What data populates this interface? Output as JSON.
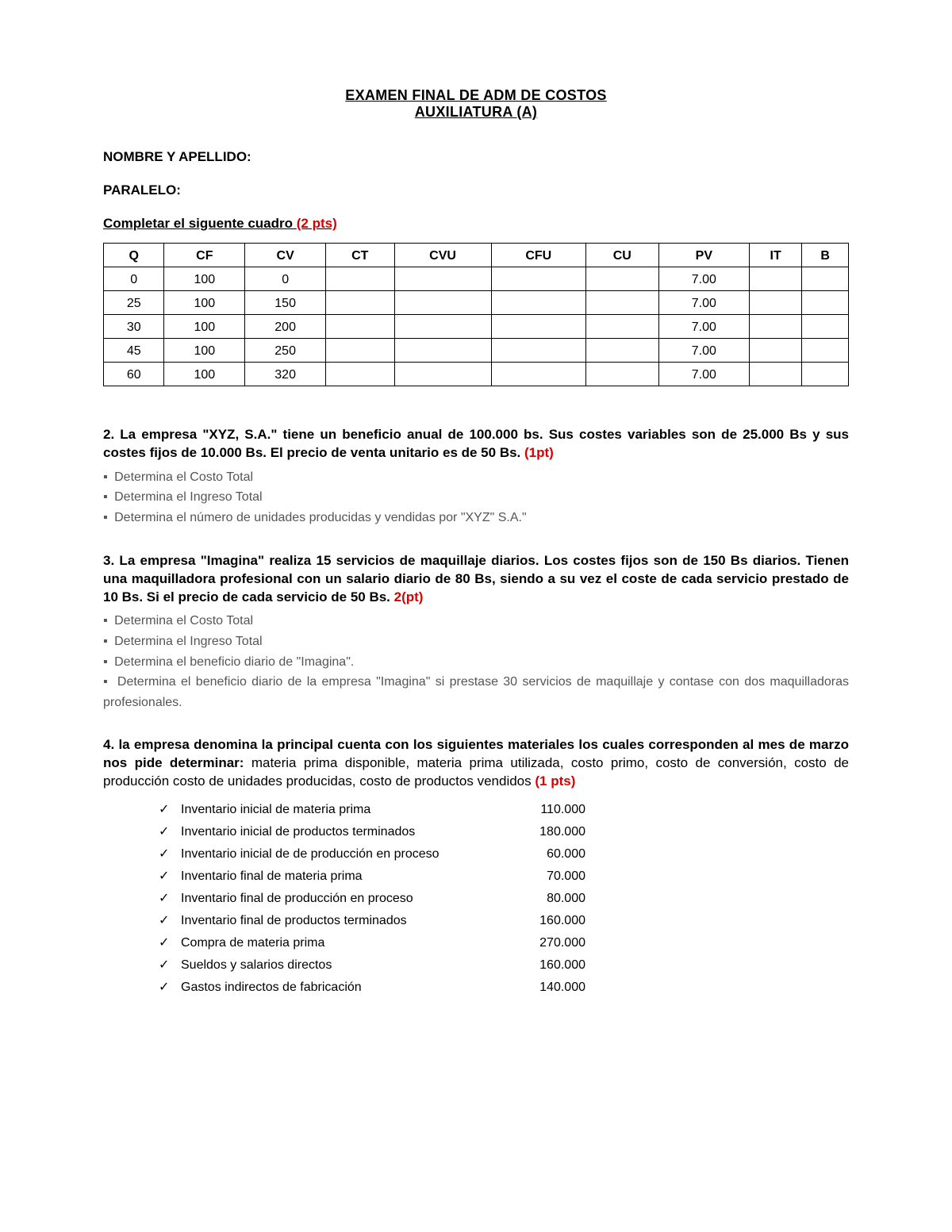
{
  "title": {
    "line1": "EXAMEN FINAL DE ADM DE COSTOS",
    "line2": "AUXILIATURA (A)"
  },
  "fields": {
    "name_label": "NOMBRE Y APELLIDO:",
    "paralelo_label": "PARALELO:"
  },
  "q1": {
    "heading_text": "Completar el siguente cuadro",
    "heading_pts": "(2 pts)",
    "columns": [
      "Q",
      "CF",
      "CV",
      "CT",
      "CVU",
      "CFU",
      "CU",
      "PV",
      "IT",
      "B"
    ],
    "rows": [
      {
        "Q": "0",
        "CF": "100",
        "CV": "0",
        "CT": "",
        "CVU": "",
        "CFU": "",
        "CU": "",
        "PV": "7.00",
        "IT": "",
        "B": ""
      },
      {
        "Q": "25",
        "CF": "100",
        "CV": "150",
        "CT": "",
        "CVU": "",
        "CFU": "",
        "CU": "",
        "PV": "7.00",
        "IT": "",
        "B": ""
      },
      {
        "Q": "30",
        "CF": "100",
        "CV": "200",
        "CT": "",
        "CVU": "",
        "CFU": "",
        "CU": "",
        "PV": "7.00",
        "IT": "",
        "B": ""
      },
      {
        "Q": "45",
        "CF": "100",
        "CV": "250",
        "CT": "",
        "CVU": "",
        "CFU": "",
        "CU": "",
        "PV": "7.00",
        "IT": "",
        "B": ""
      },
      {
        "Q": "60",
        "CF": "100",
        "CV": "320",
        "CT": "",
        "CVU": "",
        "CFU": "",
        "CU": "",
        "PV": "7.00",
        "IT": "",
        "B": ""
      }
    ]
  },
  "q2": {
    "prompt": "2. La empresa \"XYZ, S.A.\" tiene un beneficio anual de 100.000 bs. Sus costes variables son de 25.000 Bs y sus costes fijos de 10.000 Bs. El precio de venta unitario es de 50 Bs.",
    "pts": "(1pt)",
    "bullets": [
      "Determina el Costo Total",
      "Determina el Ingreso Total",
      "Determina el número de unidades producidas y vendidas por \"XYZ\" S.A.\""
    ]
  },
  "q3": {
    "prompt": "3. La empresa \"Imagina\" realiza 15 servicios de maquillaje diarios. Los costes fijos son de 150 Bs diarios. Tienen una maquilladora profesional con un salario diario de 80 Bs, siendo a su vez el coste de cada servicio prestado de 10 Bs. Si el precio de cada servicio de 50 Bs.",
    "pts": "2(pt)",
    "bullets": [
      "Determina el Costo Total",
      "Determina el Ingreso Total",
      "Determina el beneficio diario de \"Imagina\".",
      "Determina el beneficio diario de la empresa \"Imagina\" si prestase 30 servicios de maquillaje y contase con dos maquilladoras profesionales."
    ]
  },
  "q4": {
    "bold_part": "4. la empresa denomina la principal cuenta con los siguientes materiales los cuales corresponden al mes de marzo nos pide determinar:",
    "normal_part": " materia prima disponible, materia prima utilizada, costo primo, costo de conversión, costo de producción costo de unidades producidas, costo de productos vendidos",
    "pts": "(1 pts)",
    "items": [
      {
        "label": "Inventario inicial de materia prima",
        "value": "110.000"
      },
      {
        "label": "Inventario inicial de productos terminados",
        "value": "180.000"
      },
      {
        "label": "Inventario inicial de de producción en proceso",
        "value": "60.000"
      },
      {
        "label": "Inventario final de materia prima",
        "value": "70.000"
      },
      {
        "label": "Inventario final de producción en proceso",
        "value": "80.000"
      },
      {
        "label": "Inventario final de productos terminados",
        "value": "160.000"
      },
      {
        "label": "Compra de materia prima",
        "value": "270.000"
      },
      {
        "label": "Sueldos y salarios directos",
        "value": "160.000"
      },
      {
        "label": "Gastos indirectos de fabricación",
        "value": "140.000"
      }
    ]
  },
  "glyphs": {
    "bullet": "▪",
    "check": "✓"
  },
  "style": {
    "pts_color": "#d90000",
    "bullet_text_color": "#555555",
    "page_bg": "#ffffff"
  }
}
